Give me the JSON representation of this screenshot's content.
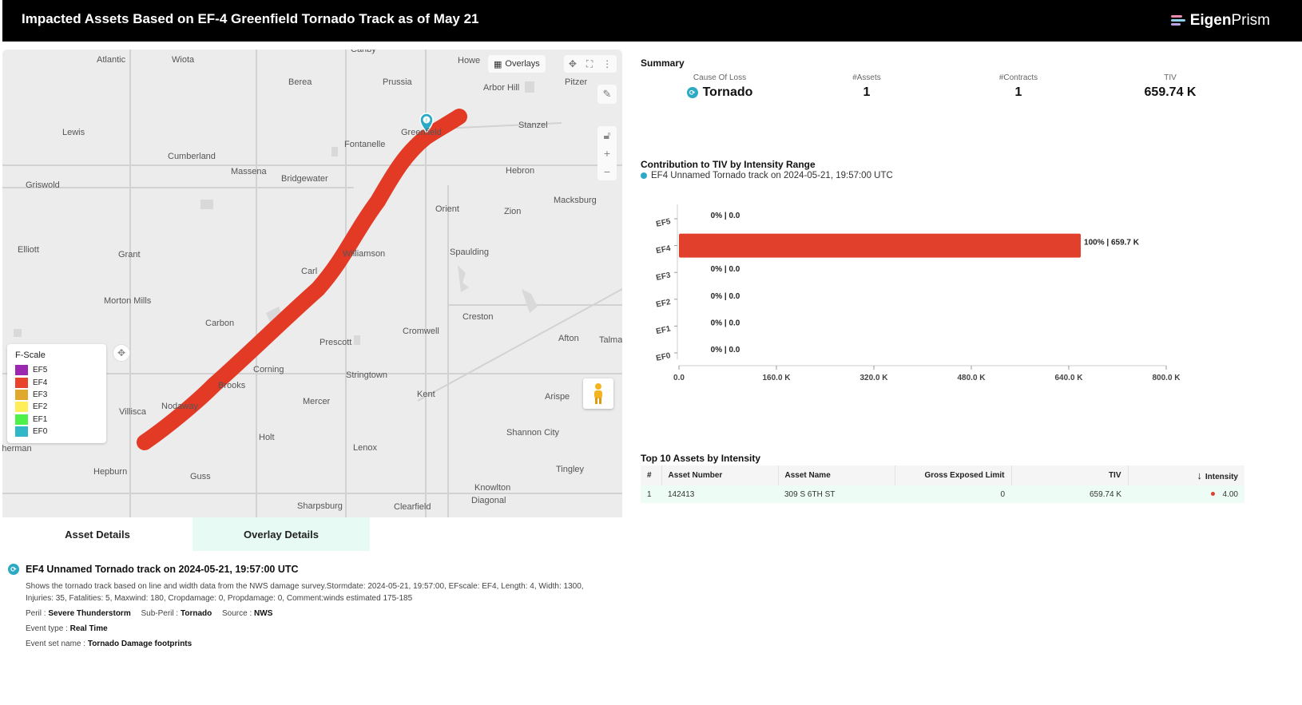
{
  "header": {
    "title": "Impacted Assets Based on EF-4 Greenfield Tornado Track as of May 21",
    "logo_bold": "Eigen",
    "logo_light": "Prism"
  },
  "map": {
    "overlays_label": "Overlays",
    "towns": [
      "Canby",
      "Atlantic",
      "Wiota",
      "Howe",
      "Berea",
      "Prussia",
      "Arbor Hill",
      "Pitzer",
      "Lewis",
      "Stanzel",
      "Fontanelle",
      "Cumberland",
      "Massena",
      "Bridgewater",
      "Hebron",
      "Griswold",
      "Orient",
      "Zion",
      "Macksburg",
      "Elliott",
      "Grant",
      "Williamson",
      "Spaulding",
      "Carl",
      "Morton Mills",
      "Creston",
      "Carbon",
      "Cromwell",
      "Afton",
      "Talma",
      "Prescott",
      "Corning",
      "Stringtown",
      "Brooks",
      "Kent",
      "Arispe",
      "Villisca",
      "Nodaway",
      "Mercer",
      "Holt",
      "Lenox",
      "Shannon City",
      "Sherman",
      "Hepburn",
      "Guss",
      "Tingley",
      "Knowlton",
      "Diagonal",
      "Sharpsburg",
      "Clearfield",
      "Greenfield"
    ],
    "legend": {
      "title": "F-Scale",
      "items": [
        {
          "label": "EF5",
          "color": "#9c27b0"
        },
        {
          "label": "EF4",
          "color": "#e8432b"
        },
        {
          "label": "EF3",
          "color": "#e0a82c"
        },
        {
          "label": "EF2",
          "color": "#ffee58"
        },
        {
          "label": "EF1",
          "color": "#4ef04a"
        },
        {
          "label": "EF0",
          "color": "#30b8c8"
        }
      ]
    },
    "track_color": "#e33a26",
    "marker_color": "#2ca9c4"
  },
  "tabs": {
    "asset_details": "Asset Details",
    "overlay_details": "Overlay Details"
  },
  "details": {
    "title": "EF4 Unnamed Tornado track on 2024-05-21, 19:57:00 UTC",
    "description": "Shows the tornado track based on line and width data from the NWS damage survey.Stormdate: 2024-05-21, 19:57:00, EFscale: EF4, Length: 4, Width: 1300, Injuries: 35, Fatalities: 5, Maxwind: 180, Cropdamage: 0, Propdamage: 0, Comment:winds estimated 175-185",
    "peril_label": "Peril : ",
    "peril": "Severe Thunderstorm",
    "subperil_label": "Sub-Peril : ",
    "subperil": "Tornado",
    "source_label": "Source : ",
    "source": "NWS",
    "event_type_label": "Event type : ",
    "event_type": "Real Time",
    "event_set_label": "Event set name : ",
    "event_set": "Tornado Damage footprints"
  },
  "summary": {
    "title": "Summary",
    "cause_label": "Cause Of Loss",
    "cause": "Tornado",
    "assets_label": "#Assets",
    "assets": "1",
    "contracts_label": "#Contracts",
    "contracts": "1",
    "tiv_label": "TIV",
    "tiv": "659.74 K"
  },
  "contribution": {
    "title": "Contribution to TIV by Intensity Range",
    "subtitle": "EF4 Unnamed Tornado track on 2024-05-21, 19:57:00 UTC"
  },
  "chart_data": {
    "type": "bar",
    "orientation": "horizontal",
    "categories": [
      "EF5",
      "EF4",
      "EF3",
      "EF2",
      "EF1",
      "EF0"
    ],
    "values": [
      0,
      659.7,
      0,
      0,
      0,
      0
    ],
    "data_labels": [
      "0% | 0.0",
      "100% | 659.7 K",
      "0% | 0.0",
      "0% | 0.0",
      "0% | 0.0",
      "0% | 0.0"
    ],
    "xlim": [
      0,
      800
    ],
    "xticks": [
      0,
      160,
      320,
      480,
      640,
      800
    ],
    "xtick_labels": [
      "0.0",
      "160.0 K",
      "320.0 K",
      "480.0 K",
      "640.0 K",
      "800.0 K"
    ],
    "bar_color": "#e0402c",
    "grid": false
  },
  "top_assets": {
    "title": "Top 10 Assets by Intensity",
    "columns": [
      "#",
      "Asset Number",
      "Asset Name",
      "Gross Exposed Limit",
      "TIV",
      "Intensity"
    ],
    "sort_arrow": "↓",
    "rows": [
      [
        "1",
        "142413",
        "309 S 6TH ST",
        "0",
        "659.74 K",
        "4.00"
      ]
    ]
  }
}
